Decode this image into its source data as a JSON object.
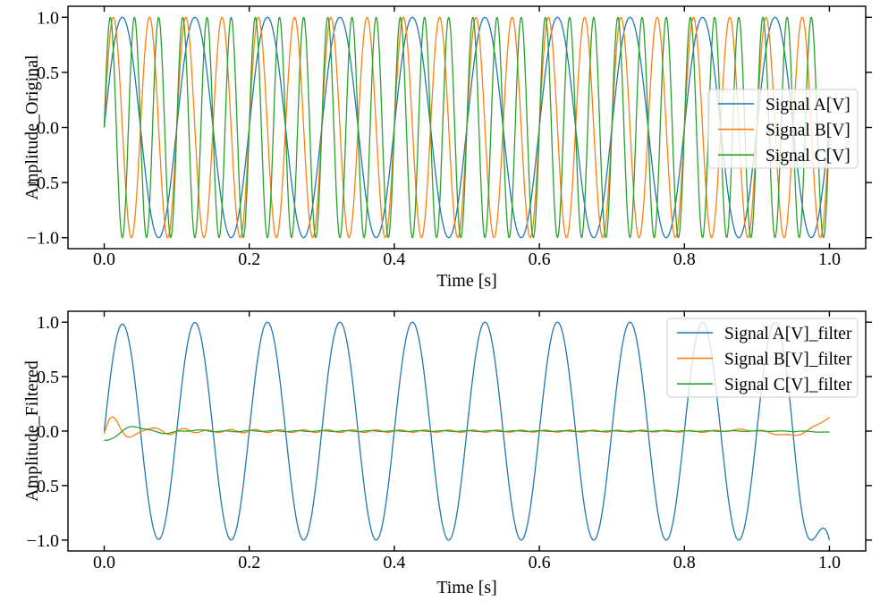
{
  "figure": {
    "background": "#ffffff",
    "text_color": "#000000",
    "spine_color": "#000000"
  },
  "chart_data": [
    {
      "type": "line",
      "title": "",
      "xlabel": "Time [s]",
      "ylabel": "Amplitude_Original",
      "xlim": [
        -0.05,
        1.05
      ],
      "ylim": [
        -1.1,
        1.1
      ],
      "grid": false,
      "tick_style": {
        "x_direction": "in",
        "y_direction": "out"
      },
      "xticks": [
        {
          "value": 0.0,
          "label": "0.0"
        },
        {
          "value": 0.2,
          "label": "0.2"
        },
        {
          "value": 0.4,
          "label": "0.4"
        },
        {
          "value": 0.6,
          "label": "0.6"
        },
        {
          "value": 0.8,
          "label": "0.8"
        },
        {
          "value": 1.0,
          "label": "1.0"
        }
      ],
      "yticks": [
        {
          "value": -1.0,
          "label": "−1.0"
        },
        {
          "value": -0.5,
          "label": "−0.5"
        },
        {
          "value": 0.0,
          "label": "0.0"
        },
        {
          "value": 0.5,
          "label": "0.5"
        },
        {
          "value": 1.0,
          "label": "1.0"
        }
      ],
      "legend": {
        "location": "center right",
        "entries": [
          {
            "label": "Signal A[V]",
            "color": "#1f77b4"
          },
          {
            "label": "Signal B[V]",
            "color": "#ff7f0e"
          },
          {
            "label": "Signal C[V]",
            "color": "#2ca02c"
          }
        ]
      },
      "x_sampling": {
        "start": 0.0,
        "end": 1.0,
        "points": 1501,
        "units": "s"
      },
      "series": [
        {
          "name": "Signal A[V]",
          "color": "#1f77b4",
          "model": {
            "kind": "sine",
            "frequency_hz": 10,
            "amplitude": 1.0,
            "phase_rad": 0
          }
        },
        {
          "name": "Signal B[V]",
          "color": "#ff7f0e",
          "model": {
            "kind": "sine",
            "frequency_hz": 20,
            "amplitude": 1.0,
            "phase_rad": 0
          }
        },
        {
          "name": "Signal C[V]",
          "color": "#2ca02c",
          "model": {
            "kind": "sine",
            "frequency_hz": 30,
            "amplitude": 1.0,
            "phase_rad": 0
          }
        }
      ]
    },
    {
      "type": "line",
      "title": "",
      "xlabel": "Time [s]",
      "ylabel": "Amplitude_Filtered",
      "xlim": [
        -0.05,
        1.05
      ],
      "ylim": [
        -1.1,
        1.1
      ],
      "grid": false,
      "tick_style": {
        "x_direction": "in",
        "y_direction": "out"
      },
      "xticks": [
        {
          "value": 0.0,
          "label": "0.0"
        },
        {
          "value": 0.2,
          "label": "0.2"
        },
        {
          "value": 0.4,
          "label": "0.4"
        },
        {
          "value": 0.6,
          "label": "0.6"
        },
        {
          "value": 0.8,
          "label": "0.8"
        },
        {
          "value": 1.0,
          "label": "1.0"
        }
      ],
      "yticks": [
        {
          "value": -1.0,
          "label": "−1.0"
        },
        {
          "value": -0.5,
          "label": "−0.5"
        },
        {
          "value": 0.0,
          "label": "0.0"
        },
        {
          "value": 0.5,
          "label": "0.5"
        },
        {
          "value": 1.0,
          "label": "1.0"
        }
      ],
      "legend": {
        "location": "upper right",
        "entries": [
          {
            "label": "Signal A[V]_filter",
            "color": "#1f77b4"
          },
          {
            "label": "Signal B[V]_filter",
            "color": "#ff7f0e"
          },
          {
            "label": "Signal C[V]_filter",
            "color": "#2ca02c"
          }
        ]
      },
      "x_sampling": {
        "start": 0.0,
        "end": 1.0,
        "points": 1501,
        "units": "s"
      },
      "series": [
        {
          "name": "Signal A[V]_filter",
          "color": "#1f77b4",
          "model": {
            "kind": "passband",
            "frequency_hz": 10,
            "amplitude": 1.0,
            "start_attenuation": 0.03,
            "start_tau_s": 0.05,
            "end_clamp_start_s": 0.945,
            "end_clamp_value": -1.0
          }
        },
        {
          "name": "Signal B[V]_filter",
          "color": "#ff7f0e",
          "model": {
            "kind": "stopband",
            "start_transient": {
              "amplitude": 0.16,
              "tau_s": 0.04,
              "frequency_hz": 20,
              "phase_rad": -0.15,
              "shape": "sin"
            },
            "residual_ripple": {
              "amplitude": 0.011,
              "frequency_hz": 30,
              "phase_rad": 0
            },
            "end_transient": {
              "amplitude": 0.125,
              "tau_s": 0.05,
              "frequency_hz": 8,
              "phase_rad": 0
            }
          }
        },
        {
          "name": "Signal C[V]_filter",
          "color": "#2ca02c",
          "model": {
            "kind": "stopband",
            "start_transient": {
              "amplitude": -0.095,
              "tau_s": 0.05,
              "frequency_hz": 12,
              "phase_rad": -0.3,
              "shape": "cos"
            },
            "residual_ripple": {
              "amplitude": 0.004,
              "frequency_hz": 30,
              "phase_rad": 1.5
            },
            "end_transient": {
              "amplitude": -0.012,
              "tau_s": 0.025,
              "frequency_hz": 0,
              "phase_rad": 0
            }
          }
        }
      ]
    }
  ]
}
